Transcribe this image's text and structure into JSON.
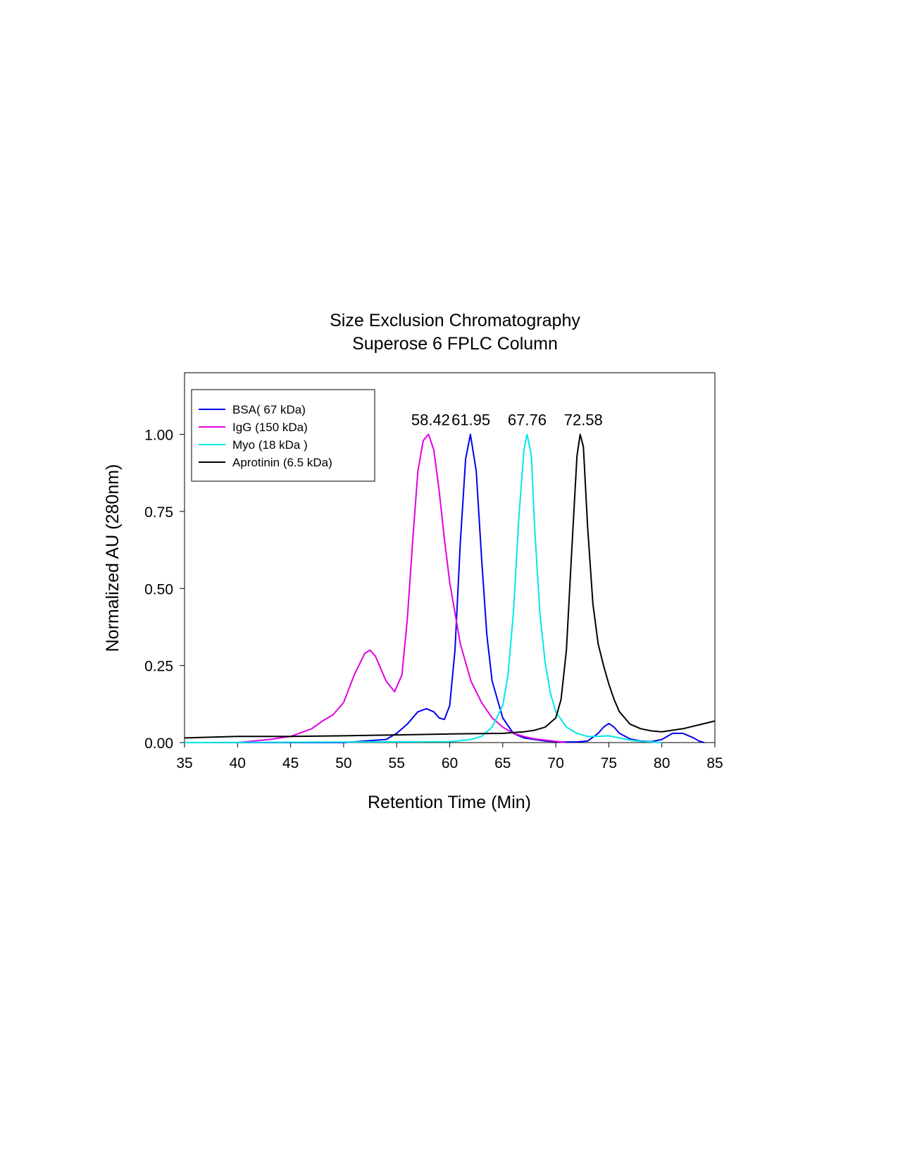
{
  "chart_data": {
    "type": "line",
    "title": "Size Exclusion Chromatography",
    "subtitle": "Superose 6 FPLC Column",
    "xlabel": "Retention Time (Min)",
    "ylabel": "Normalized AU (280nm)",
    "xlim": [
      35,
      85
    ],
    "ylim": [
      0,
      1.2
    ],
    "xticks": [
      35,
      40,
      45,
      50,
      55,
      60,
      65,
      70,
      75,
      80,
      85
    ],
    "xtick_labels": [
      "35",
      "40",
      "45",
      "50",
      "55",
      "60",
      "65",
      "70",
      "75",
      "80",
      "85"
    ],
    "yticks": [
      0,
      0.25,
      0.5,
      0.75,
      1.0
    ],
    "ytick_labels": [
      "0.00",
      "0.25",
      "0.50",
      "0.75",
      "1.00"
    ],
    "legend_position": "top-left",
    "series": [
      {
        "name": "BSA( 67 kDa)",
        "color": "#0000ee",
        "x": [
          35,
          50,
          54,
          55,
          56,
          57,
          57.8,
          58.5,
          59,
          59.5,
          60,
          60.5,
          61,
          61.5,
          61.95,
          62.5,
          63,
          63.5,
          64,
          65,
          66,
          67,
          68,
          69,
          70,
          71,
          72,
          73,
          74,
          74.5,
          75,
          75.5,
          76,
          77,
          78,
          79,
          80,
          81,
          82,
          83,
          83.5,
          84
        ],
        "y": [
          0.0,
          0.0,
          0.01,
          0.03,
          0.06,
          0.1,
          0.11,
          0.1,
          0.08,
          0.075,
          0.12,
          0.3,
          0.65,
          0.92,
          1.0,
          0.88,
          0.6,
          0.35,
          0.2,
          0.08,
          0.03,
          0.015,
          0.01,
          0.005,
          0.003,
          0.002,
          0.002,
          0.005,
          0.03,
          0.05,
          0.062,
          0.05,
          0.03,
          0.012,
          0.005,
          0.003,
          0.01,
          0.03,
          0.03,
          0.015,
          0.005,
          0.0
        ]
      },
      {
        "name": "IgG (150 kDa)",
        "color": "#e000e0",
        "x": [
          40,
          43,
          45,
          47,
          48,
          49,
          50,
          51,
          52,
          52.5,
          53,
          54,
          54.8,
          55.5,
          56,
          56.5,
          57,
          57.5,
          58,
          58.5,
          59,
          59.5,
          60,
          61,
          62,
          63,
          64,
          65,
          66,
          67,
          68,
          69,
          70,
          71
        ],
        "y": [
          0.0,
          0.01,
          0.02,
          0.045,
          0.07,
          0.09,
          0.13,
          0.22,
          0.29,
          0.3,
          0.28,
          0.2,
          0.165,
          0.22,
          0.4,
          0.65,
          0.88,
          0.98,
          1.0,
          0.95,
          0.82,
          0.66,
          0.52,
          0.32,
          0.2,
          0.13,
          0.08,
          0.05,
          0.03,
          0.02,
          0.012,
          0.008,
          0.004,
          0.0
        ]
      },
      {
        "name": "Myo (18 kDa )",
        "color": "#00e8e8",
        "x": [
          35,
          60,
          62,
          63,
          64,
          65,
          65.5,
          66,
          66.5,
          67,
          67.3,
          67.7,
          68,
          68.5,
          69,
          69.5,
          70,
          71,
          72,
          73,
          74,
          75,
          76,
          77,
          78,
          79,
          80
        ],
        "y": [
          0.0,
          0.003,
          0.01,
          0.02,
          0.05,
          0.12,
          0.22,
          0.42,
          0.72,
          0.95,
          1.0,
          0.93,
          0.7,
          0.42,
          0.26,
          0.16,
          0.1,
          0.05,
          0.03,
          0.02,
          0.02,
          0.022,
          0.015,
          0.008,
          0.004,
          0.002,
          0.0
        ]
      },
      {
        "name": "Aprotinin (6.5 kDa)",
        "color": "#000000",
        "x": [
          35,
          40,
          45,
          50,
          55,
          60,
          65,
          67,
          68,
          69,
          70,
          70.5,
          71,
          71.5,
          72,
          72.3,
          72.6,
          73,
          73.5,
          74,
          74.5,
          75,
          75.5,
          76,
          77,
          78,
          79,
          80,
          82,
          85
        ],
        "y": [
          0.015,
          0.02,
          0.02,
          0.022,
          0.025,
          0.028,
          0.03,
          0.035,
          0.04,
          0.05,
          0.08,
          0.14,
          0.3,
          0.62,
          0.93,
          1.0,
          0.96,
          0.7,
          0.45,
          0.32,
          0.25,
          0.19,
          0.14,
          0.1,
          0.06,
          0.045,
          0.038,
          0.035,
          0.045,
          0.07
        ]
      }
    ],
    "annotations": [
      {
        "text": "58.42",
        "x": 58.2,
        "y": 1.03
      },
      {
        "text": "61.95",
        "x": 62.0,
        "y": 1.03
      },
      {
        "text": "67.76",
        "x": 67.3,
        "y": 1.03
      },
      {
        "text": "72.58",
        "x": 72.6,
        "y": 1.03
      }
    ]
  }
}
